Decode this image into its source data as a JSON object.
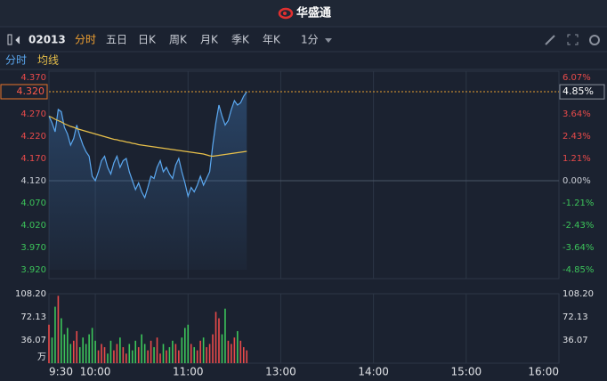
{
  "header": {
    "brand": "华盛通"
  },
  "toolbar": {
    "stock_code": "02013",
    "tabs": [
      "分时",
      "五日",
      "日K",
      "周K",
      "月K",
      "季K",
      "年K",
      "1分"
    ]
  },
  "chart_data": [
    {
      "type": "line",
      "x": [
        "9:30",
        "9:32",
        "9:34",
        "9:36",
        "9:38",
        "9:40",
        "9:42",
        "9:44",
        "9:46",
        "9:48",
        "9:50",
        "9:52",
        "9:54",
        "9:56",
        "9:58",
        "10:00",
        "10:02",
        "10:04",
        "10:06",
        "10:08",
        "10:10",
        "10:12",
        "10:14",
        "10:16",
        "10:18",
        "10:20",
        "10:22",
        "10:24",
        "10:26",
        "10:28",
        "10:30",
        "10:32",
        "10:34",
        "10:36",
        "10:38",
        "10:40",
        "10:42",
        "10:44",
        "10:46",
        "10:48",
        "10:50",
        "10:52",
        "10:54",
        "10:56",
        "10:58",
        "11:00",
        "11:02",
        "11:04",
        "11:06",
        "11:08",
        "11:10",
        "11:12",
        "11:14",
        "11:16",
        "11:18",
        "11:20",
        "11:22",
        "11:24",
        "11:26",
        "11:28",
        "11:30",
        "11:32",
        "11:34",
        "11:36",
        "11:38"
      ],
      "series": [
        {
          "name": "分时",
          "color": "#5ba8f0",
          "values": [
            4.265,
            4.25,
            4.23,
            4.28,
            4.275,
            4.24,
            4.225,
            4.2,
            4.215,
            4.245,
            4.22,
            4.2,
            4.185,
            4.175,
            4.13,
            4.12,
            4.14,
            4.165,
            4.175,
            4.15,
            4.135,
            4.16,
            4.175,
            4.15,
            4.165,
            4.17,
            4.14,
            4.12,
            4.1,
            4.115,
            4.095,
            4.082,
            4.105,
            4.13,
            4.125,
            4.15,
            4.165,
            4.14,
            4.15,
            4.135,
            4.125,
            4.155,
            4.17,
            4.14,
            4.115,
            4.085,
            4.105,
            4.095,
            4.11,
            4.13,
            4.11,
            4.125,
            4.14,
            4.2,
            4.25,
            4.29,
            4.265,
            4.245,
            4.255,
            4.28,
            4.3,
            4.29,
            4.295,
            4.31,
            4.32
          ]
        },
        {
          "name": "均线",
          "color": "#e8c04a",
          "values": [
            4.265,
            4.262,
            4.258,
            4.255,
            4.252,
            4.248,
            4.245,
            4.242,
            4.24,
            4.237,
            4.235,
            4.233,
            4.231,
            4.229,
            4.227,
            4.225,
            4.223,
            4.221,
            4.219,
            4.217,
            4.215,
            4.213,
            4.212,
            4.21,
            4.209,
            4.207,
            4.206,
            4.204,
            4.203,
            4.201,
            4.2,
            4.199,
            4.198,
            4.197,
            4.196,
            4.195,
            4.194,
            4.193,
            4.192,
            4.191,
            4.19,
            4.189,
            4.188,
            4.187,
            4.186,
            4.185,
            4.184,
            4.183,
            4.182,
            4.181,
            4.18,
            4.178,
            4.176,
            4.175,
            4.176,
            4.177,
            4.178,
            4.179,
            4.18,
            4.181,
            4.182,
            4.183,
            4.184,
            4.185,
            4.186
          ]
        }
      ],
      "ylim": [
        3.92,
        4.37
      ],
      "yticks": [
        {
          "value": 4.37,
          "label": "4.370"
        },
        {
          "value": 4.32,
          "label": "4.320"
        },
        {
          "value": 4.27,
          "label": "4.270"
        },
        {
          "value": 4.22,
          "label": "4.220"
        },
        {
          "value": 4.17,
          "label": "4.170"
        },
        {
          "value": 4.12,
          "label": "4.120"
        },
        {
          "value": 4.07,
          "label": "4.070"
        },
        {
          "value": 4.02,
          "label": "4.020"
        },
        {
          "value": 3.97,
          "label": "3.970"
        },
        {
          "value": 3.92,
          "label": "3.920"
        }
      ],
      "y2lim": [
        -4.85,
        6.07
      ],
      "y2ticks": [
        {
          "value": 6.07,
          "label": "6.07%"
        },
        {
          "value": 4.85,
          "label": "4.85%"
        },
        {
          "value": 3.64,
          "label": "3.64%"
        },
        {
          "value": 2.43,
          "label": "2.43%"
        },
        {
          "value": 1.21,
          "label": "1.21%"
        },
        {
          "value": 0,
          "label": "0.00%"
        },
        {
          "value": -1.21,
          "label": "-1.21%"
        },
        {
          "value": -2.43,
          "label": "-2.43%"
        },
        {
          "value": -3.64,
          "label": "-3.64%"
        },
        {
          "value": -4.85,
          "label": "-4.85%"
        }
      ],
      "last_price": {
        "value": 4.32,
        "label": "4.320"
      },
      "last_change": {
        "value": 4.85,
        "label": "4.85%"
      }
    },
    {
      "type": "bar",
      "x": [
        "9:30",
        "9:32",
        "9:34",
        "9:36",
        "9:38",
        "9:40",
        "9:42",
        "9:44",
        "9:46",
        "9:48",
        "9:50",
        "9:52",
        "9:54",
        "9:56",
        "9:58",
        "10:00",
        "10:02",
        "10:04",
        "10:06",
        "10:08",
        "10:10",
        "10:12",
        "10:14",
        "10:16",
        "10:18",
        "10:20",
        "10:22",
        "10:24",
        "10:26",
        "10:28",
        "10:30",
        "10:32",
        "10:34",
        "10:36",
        "10:38",
        "10:40",
        "10:42",
        "10:44",
        "10:46",
        "10:48",
        "10:50",
        "10:52",
        "10:54",
        "10:56",
        "10:58",
        "11:00",
        "11:02",
        "11:04",
        "11:06",
        "11:08",
        "11:10",
        "11:12",
        "11:14",
        "11:16",
        "11:18",
        "11:20",
        "11:22",
        "11:24",
        "11:26",
        "11:28",
        "11:30",
        "11:32",
        "11:34",
        "11:36",
        "11:38"
      ],
      "values": [
        60,
        40,
        88,
        105,
        70,
        45,
        55,
        30,
        35,
        50,
        25,
        40,
        30,
        45,
        55,
        35,
        20,
        30,
        25,
        15,
        35,
        20,
        30,
        40,
        25,
        15,
        30,
        20,
        35,
        25,
        45,
        30,
        20,
        35,
        25,
        40,
        15,
        30,
        20,
        25,
        35,
        30,
        20,
        40,
        55,
        60,
        30,
        25,
        20,
        35,
        40,
        25,
        30,
        45,
        80,
        70,
        45,
        85,
        35,
        30,
        40,
        50,
        35,
        25,
        20
      ],
      "up_color": "#e84a4a",
      "down_color": "#3cc45a",
      "ylim": [
        0,
        108.2
      ],
      "yticks": [
        {
          "value": 108.2,
          "label": "108.20"
        },
        72.13,
        36.07
      ],
      "unit": "万",
      "xticks": [
        "9:30",
        "10:00",
        "11:00",
        "13:00",
        "14:00",
        "15:00",
        "16:00"
      ]
    }
  ]
}
